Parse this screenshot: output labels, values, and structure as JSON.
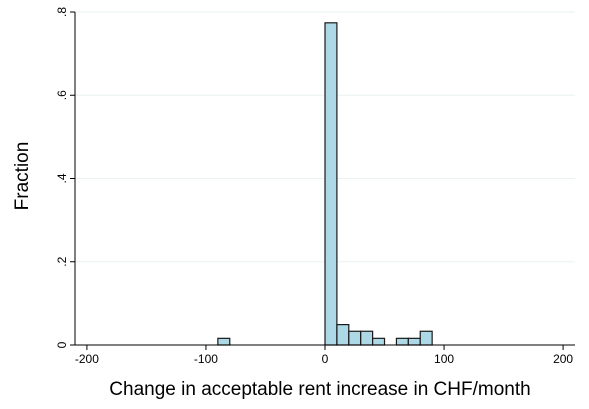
{
  "chart_data": {
    "type": "bar",
    "subtype": "histogram",
    "xlabel": "Change in acceptable rent increase in CHF/month",
    "ylabel": "Fraction",
    "xlim": [
      -210,
      210
    ],
    "ylim": [
      0,
      0.8
    ],
    "x_ticks": [
      -200,
      -100,
      0,
      100,
      200
    ],
    "x_tick_labels": [
      "-200",
      "-100",
      "0",
      "100",
      "200"
    ],
    "y_ticks": [
      0,
      0.2,
      0.4,
      0.6,
      0.8
    ],
    "y_tick_labels": [
      "0",
      ".2",
      ".4",
      ".6",
      ".8"
    ],
    "grid": true,
    "bar_color": "#add8e6",
    "bin_width": 10,
    "bins": [
      {
        "start": -90,
        "end": -80,
        "value": 0.016
      },
      {
        "start": 0,
        "end": 10,
        "value": 0.774
      },
      {
        "start": 10,
        "end": 20,
        "value": 0.049
      },
      {
        "start": 20,
        "end": 30,
        "value": 0.033
      },
      {
        "start": 30,
        "end": 40,
        "value": 0.033
      },
      {
        "start": 40,
        "end": 50,
        "value": 0.016
      },
      {
        "start": 60,
        "end": 70,
        "value": 0.016
      },
      {
        "start": 70,
        "end": 80,
        "value": 0.016
      },
      {
        "start": 80,
        "end": 90,
        "value": 0.033
      }
    ]
  }
}
